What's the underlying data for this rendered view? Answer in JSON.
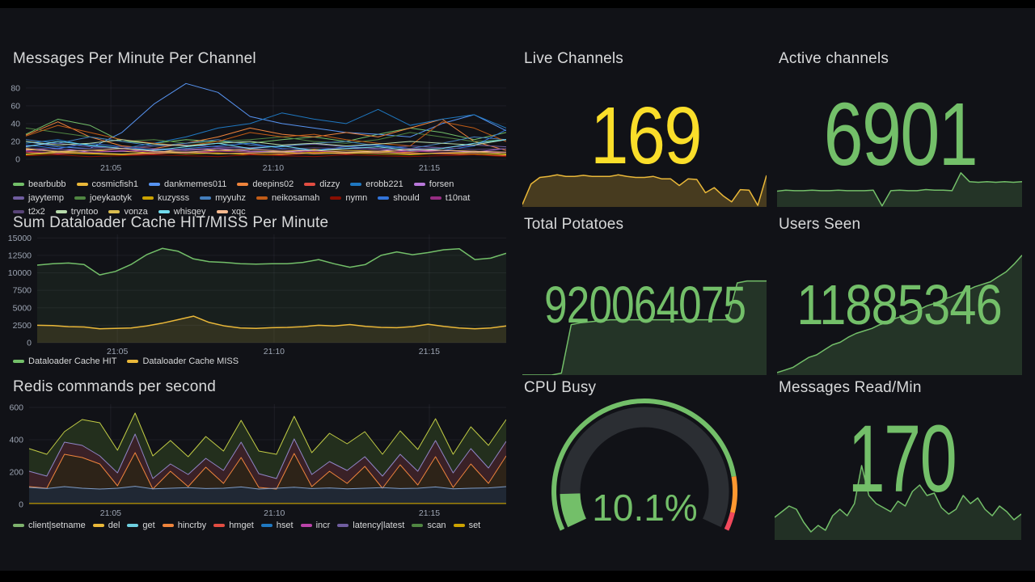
{
  "panels": {
    "messages": {
      "title": "Messages Per Minute Per Channel",
      "ymax": 88,
      "yticks": [
        0,
        20,
        40,
        60,
        80
      ],
      "xticks": [
        {
          "label": "21:05",
          "f": 0.177
        },
        {
          "label": "21:10",
          "f": 0.515
        },
        {
          "label": "21:15",
          "f": 0.84
        }
      ],
      "series": [
        {
          "name": "bearbubb",
          "color": "#73BF69",
          "values": [
            28,
            45,
            38,
            20,
            18,
            22,
            20,
            18,
            22,
            25,
            20,
            28,
            35,
            30,
            22,
            30
          ]
        },
        {
          "name": "cosmicfish1",
          "color": "#EAB839",
          "values": [
            12,
            8,
            10,
            9,
            7,
            12,
            10,
            8,
            9,
            11,
            10,
            9,
            8,
            10,
            9,
            6
          ]
        },
        {
          "name": "dankmemes011",
          "color": "#5794F2",
          "values": [
            20,
            14,
            12,
            30,
            62,
            85,
            75,
            48,
            40,
            35,
            30,
            28,
            25,
            40,
            50,
            32
          ]
        },
        {
          "name": "deepins02",
          "color": "#EF843C",
          "values": [
            27,
            42,
            25,
            15,
            12,
            18,
            25,
            35,
            28,
            25,
            30,
            25,
            35,
            45,
            20,
            10
          ]
        },
        {
          "name": "dizzy",
          "color": "#E24D42",
          "values": [
            8,
            6,
            7,
            5,
            6,
            8,
            7,
            6,
            5,
            7,
            6,
            8,
            7,
            6,
            5,
            4
          ]
        },
        {
          "name": "erobb221",
          "color": "#1F78C1",
          "values": [
            18,
            22,
            15,
            12,
            18,
            25,
            35,
            40,
            52,
            45,
            40,
            56,
            38,
            45,
            50,
            35
          ]
        },
        {
          "name": "forsen",
          "color": "#B877D9",
          "values": [
            10,
            12,
            8,
            9,
            11,
            10,
            12,
            9,
            8,
            10,
            12,
            11,
            9,
            10,
            8,
            12
          ]
        },
        {
          "name": "jayytemp",
          "color": "#705DA0",
          "values": [
            15,
            18,
            14,
            12,
            15,
            16,
            14,
            13,
            15,
            17,
            14,
            12,
            15,
            13,
            16,
            14
          ]
        },
        {
          "name": "joeykaotyk",
          "color": "#508642",
          "values": [
            35,
            30,
            25,
            20,
            22,
            18,
            20,
            22,
            25,
            20,
            18,
            22,
            30,
            25,
            20,
            22
          ]
        },
        {
          "name": "kuzysss",
          "color": "#CCA300",
          "values": [
            5,
            7,
            6,
            5,
            8,
            6,
            7,
            5,
            6,
            8,
            7,
            6,
            5,
            7,
            6,
            5
          ]
        },
        {
          "name": "myyuhz",
          "color": "#447EBC",
          "values": [
            22,
            18,
            25,
            20,
            15,
            18,
            22,
            16,
            14,
            18,
            20,
            15,
            12,
            18,
            25,
            22
          ]
        },
        {
          "name": "neikosamah",
          "color": "#C15C17",
          "values": [
            26,
            38,
            30,
            22,
            18,
            15,
            20,
            30,
            25,
            28,
            22,
            18,
            15,
            42,
            35,
            20
          ]
        },
        {
          "name": "nymn",
          "color": "#890F02",
          "values": [
            4,
            5,
            3,
            4,
            5,
            4,
            3,
            5,
            4,
            3,
            5,
            4,
            3,
            4,
            5,
            3
          ]
        },
        {
          "name": "should",
          "color": "#3274D9",
          "values": [
            16,
            12,
            18,
            14,
            10,
            12,
            15,
            18,
            12,
            10,
            14,
            16,
            12,
            10,
            15,
            33
          ]
        },
        {
          "name": "t10nat",
          "color": "#962D82",
          "values": [
            9,
            7,
            8,
            10,
            8,
            7,
            9,
            8,
            7,
            9,
            8,
            7,
            9,
            8,
            7,
            8
          ]
        },
        {
          "name": "t2x2",
          "color": "#584477",
          "values": [
            13,
            11,
            12,
            14,
            12,
            11,
            13,
            12,
            11,
            13,
            12,
            11,
            12,
            13,
            11,
            12
          ]
        },
        {
          "name": "tryntoo",
          "color": "#B7DBAB",
          "values": [
            20,
            16,
            18,
            22,
            17,
            15,
            18,
            20,
            16,
            18,
            15,
            17,
            20,
            18,
            16,
            22
          ]
        },
        {
          "name": "vonza",
          "color": "#D9BC4F",
          "values": [
            6,
            8,
            7,
            6,
            7,
            8,
            6,
            7,
            8,
            6,
            7,
            8,
            6,
            7,
            8,
            6
          ]
        },
        {
          "name": "whisqey",
          "color": "#70DBED",
          "values": [
            14,
            20,
            16,
            12,
            10,
            14,
            18,
            12,
            15,
            10,
            12,
            14,
            10,
            12,
            18,
            22
          ]
        },
        {
          "name": "xqc",
          "color": "#F9BA8F",
          "values": [
            11,
            9,
            10,
            12,
            9,
            8,
            10,
            11,
            9,
            10,
            8,
            9,
            11,
            10,
            9,
            8
          ]
        }
      ]
    },
    "dataloader": {
      "title": "Sum Dataloader Cache HIT/MISS Per Minute",
      "ymax": 15500,
      "yticks": [
        0,
        2500,
        5000,
        7500,
        10000,
        12500,
        15000
      ],
      "xticks": [
        {
          "label": "21:05",
          "f": 0.171
        },
        {
          "label": "21:10",
          "f": 0.505
        },
        {
          "label": "21:15",
          "f": 0.836
        }
      ],
      "series": [
        {
          "name": "Dataloader Cache HIT",
          "color": "#73BF69",
          "w": 1.5,
          "fill": "rgba(115,191,105,0.08)",
          "values": [
            11100,
            11300,
            11400,
            11200,
            9700,
            10200,
            11200,
            12600,
            13500,
            13100,
            12000,
            11600,
            11500,
            11300,
            11250,
            11300,
            11300,
            11500,
            11900,
            11300,
            10800,
            11200,
            12500,
            13000,
            12600,
            12900,
            13300,
            13450,
            11900,
            12100,
            12800
          ]
        },
        {
          "name": "Dataloader Cache MISS",
          "color": "#EAB839",
          "w": 1.5,
          "fill": "rgba(234,184,57,0.12)",
          "values": [
            2500,
            2450,
            2300,
            2250,
            2000,
            2050,
            2100,
            2400,
            2800,
            3300,
            3800,
            2900,
            2400,
            2100,
            2050,
            2150,
            2200,
            2300,
            2500,
            2400,
            2600,
            2350,
            2200,
            2150,
            2300,
            2650,
            2350,
            2100,
            2000,
            2100,
            2400
          ]
        }
      ]
    },
    "redis": {
      "title": "Redis commands per second",
      "ymax": 620,
      "yticks": [
        0,
        200,
        400,
        600
      ],
      "xticks": [
        {
          "label": "21:05",
          "f": 0.171
        },
        {
          "label": "21:10",
          "f": 0.514
        },
        {
          "label": "21:15",
          "f": 0.839
        }
      ],
      "legend": [
        {
          "name": "client|setname",
          "color": "#7EB26D"
        },
        {
          "name": "del",
          "color": "#EAB839"
        },
        {
          "name": "get",
          "color": "#6ED0E0"
        },
        {
          "name": "hincrby",
          "color": "#EF843C"
        },
        {
          "name": "hmget",
          "color": "#E24D42"
        },
        {
          "name": "hset",
          "color": "#1F78C1"
        },
        {
          "name": "incr",
          "color": "#BA43A9"
        },
        {
          "name": "latency|latest",
          "color": "#705DA0"
        },
        {
          "name": "scan",
          "color": "#508642"
        },
        {
          "name": "set",
          "color": "#CCA300"
        }
      ],
      "series": [
        {
          "name": "set (stack top)",
          "color": "#C2CC45",
          "fill": "#232F1D",
          "values": [
            345,
            310,
            450,
            525,
            505,
            335,
            565,
            300,
            395,
            295,
            420,
            330,
            520,
            330,
            310,
            545,
            320,
            440,
            375,
            450,
            310,
            455,
            340,
            530,
            310,
            480,
            365,
            525
          ]
        },
        {
          "name": "latency|latest (stacked)",
          "color": "#8F85C7",
          "fill": "#3A2127",
          "values": [
            205,
            175,
            385,
            365,
            300,
            195,
            435,
            160,
            250,
            185,
            285,
            210,
            385,
            190,
            160,
            405,
            185,
            265,
            210,
            295,
            175,
            310,
            205,
            395,
            195,
            345,
            225,
            390
          ]
        },
        {
          "name": "hincrby (stacked)",
          "color": "#EF843C",
          "fill": "#2D2318",
          "values": [
            110,
            100,
            310,
            290,
            250,
            115,
            320,
            95,
            205,
            110,
            230,
            130,
            290,
            105,
            95,
            315,
            110,
            205,
            130,
            235,
            100,
            245,
            120,
            295,
            105,
            250,
            130,
            300
          ]
        },
        {
          "name": "get (stacked)",
          "color": "#7E9BC4",
          "fill": "#202834",
          "values": [
            105,
            98,
            110,
            100,
            95,
            100,
            112,
            96,
            100,
            104,
            98,
            100,
            108,
            95,
            100,
            106,
            98,
            102,
            96,
            100,
            104,
            98,
            100,
            108,
            96,
            100,
            102,
            110
          ]
        },
        {
          "name": "client|setname (stacked)",
          "color": "#CCA300",
          "fill": "#2E2B13",
          "values": [
            6,
            6,
            6,
            6,
            6,
            6,
            6,
            6,
            6,
            6,
            6,
            6,
            6,
            6,
            6,
            6,
            6,
            6,
            6,
            6,
            6,
            6,
            6,
            6,
            6,
            6,
            6,
            6
          ]
        }
      ]
    },
    "live_channels": {
      "title": "Live Channels",
      "value": "169",
      "color": "#FADE2A",
      "spark": {
        "color": "#EAB839",
        "fill": "rgba(234,184,57,0.25)",
        "values": [
          0.05,
          0.45,
          0.58,
          0.6,
          0.63,
          0.6,
          0.6,
          0.62,
          0.6,
          0.6,
          0.6,
          0.63,
          0.6,
          0.58,
          0.58,
          0.6,
          0.55,
          0.55,
          0.42,
          0.55,
          0.54,
          0.28,
          0.38,
          0.22,
          0.1,
          0.34,
          0.33,
          0.03,
          0.62
        ]
      }
    },
    "active_channels": {
      "title": "Active channels",
      "value": "6901",
      "color": "#73BF69",
      "spark": {
        "color": "#73BF69",
        "fill": "rgba(115,191,105,0.20)",
        "values": [
          0.3,
          0.32,
          0.31,
          0.31,
          0.32,
          0.31,
          0.31,
          0.32,
          0.31,
          0.31,
          0.31,
          0.32,
          0.02,
          0.31,
          0.32,
          0.31,
          0.31,
          0.33,
          0.32,
          0.32,
          0.31,
          0.65,
          0.48,
          0.47,
          0.48,
          0.47,
          0.48,
          0.47,
          0.48
        ]
      }
    },
    "total_potatoes": {
      "title": "Total Potatoes",
      "value": "920064075",
      "color": "#73BF69",
      "spark": {
        "color": "#73BF69",
        "fill": "rgba(115,191,105,0.20)",
        "values": [
          0,
          0,
          0,
          0,
          0.02,
          0.52,
          0.54,
          0.55,
          0.56,
          0.57,
          0.57,
          0.57,
          0.57,
          0.57,
          0.57,
          0.57,
          0.57,
          0.57,
          0.57,
          0.57,
          0.57,
          0.57,
          0.95,
          0.97,
          0.97,
          0.97
        ]
      }
    },
    "users_seen": {
      "title": "Users Seen",
      "value": "11885346",
      "color": "#73BF69",
      "spark": {
        "color": "#73BF69",
        "fill": "rgba(115,191,105,0.20)",
        "values": [
          0.02,
          0.04,
          0.06,
          0.1,
          0.14,
          0.16,
          0.2,
          0.24,
          0.26,
          0.3,
          0.33,
          0.35,
          0.37,
          0.4,
          0.42,
          0.45,
          0.47,
          0.5,
          0.52,
          0.55,
          0.57,
          0.6,
          0.62,
          0.65,
          0.67,
          0.7,
          0.72,
          0.74,
          0.78,
          0.82,
          0.88,
          0.95
        ]
      }
    },
    "cpu_busy": {
      "title": "CPU Busy",
      "value": "10.1%",
      "percent": 10.1,
      "color": "#73BF69",
      "track_color": "#2b2e33",
      "thresholds": [
        {
          "to": 85,
          "color": "#73BF69"
        },
        {
          "to": 95,
          "color": "#FF9830"
        },
        {
          "to": 100,
          "color": "#F2495C"
        }
      ]
    },
    "messages_read": {
      "title": "Messages Read/Min",
      "value": "170",
      "color": "#73BF69",
      "spark": {
        "color": "#73BF69",
        "fill": "rgba(115,191,105,0.18)",
        "values": [
          0.28,
          0.35,
          0.42,
          0.38,
          0.22,
          0.1,
          0.18,
          0.12,
          0.3,
          0.38,
          0.3,
          0.45,
          0.92,
          0.55,
          0.45,
          0.4,
          0.35,
          0.48,
          0.42,
          0.6,
          0.68,
          0.55,
          0.58,
          0.4,
          0.32,
          0.38,
          0.55,
          0.45,
          0.52,
          0.38,
          0.3,
          0.42,
          0.35,
          0.25,
          0.32
        ]
      }
    }
  }
}
